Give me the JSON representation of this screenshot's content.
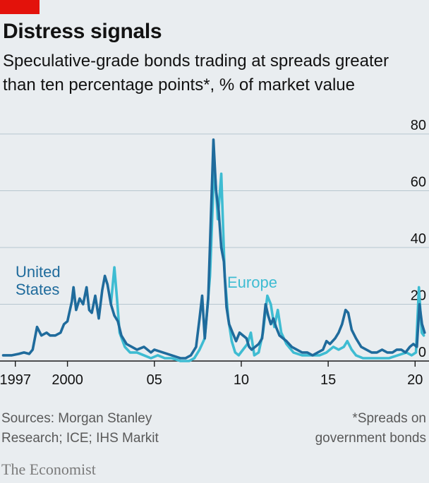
{
  "header": {
    "title": "Distress signals",
    "subtitle_line1": "Speculative-grade bonds trading at spreads greater",
    "subtitle_line2": "than ten percentage points*, % of market value"
  },
  "footer": {
    "sources_line1": "Sources: Morgan Stanley",
    "sources_line2": "Research; ICE; IHS Markit",
    "note_line1": "*Spreads on",
    "note_line2": "government bonds",
    "brand": "The Economist"
  },
  "colors": {
    "background": "#e9edf0",
    "accent_red": "#e3120b",
    "united_states": "#1f6b9c",
    "europe": "#3ebcd2",
    "grid": "#b7c6cf"
  },
  "chart_data": {
    "type": "line",
    "ylim": [
      0,
      80
    ],
    "xlim": [
      1996.2,
      2020.8
    ],
    "y_ticks": [
      0,
      20,
      40,
      60,
      80
    ],
    "y_tick_labels": [
      "0",
      "20",
      "40",
      "60",
      "80"
    ],
    "x_ticks": [
      1997,
      2000,
      2005,
      2010,
      2015,
      2020
    ],
    "x_tick_labels": [
      "1997",
      "2000",
      "05",
      "10",
      "15",
      "20"
    ],
    "grid": true,
    "series": [
      {
        "name": "United States",
        "label_line1": "United",
        "label_line2": "States",
        "color": "#1f6b9c",
        "points": [
          [
            1996.3,
            2
          ],
          [
            1996.8,
            2
          ],
          [
            1997.2,
            2.5
          ],
          [
            1997.5,
            3
          ],
          [
            1997.8,
            2.5
          ],
          [
            1998.0,
            4
          ],
          [
            1998.25,
            12
          ],
          [
            1998.5,
            9
          ],
          [
            1998.8,
            10
          ],
          [
            1999.0,
            9
          ],
          [
            1999.3,
            9
          ],
          [
            1999.6,
            10
          ],
          [
            1999.8,
            13
          ],
          [
            2000.0,
            14
          ],
          [
            2000.25,
            21
          ],
          [
            2000.35,
            26
          ],
          [
            2000.5,
            18
          ],
          [
            2000.7,
            22
          ],
          [
            2000.9,
            20
          ],
          [
            2001.1,
            26
          ],
          [
            2001.25,
            18
          ],
          [
            2001.4,
            17
          ],
          [
            2001.6,
            23
          ],
          [
            2001.8,
            15
          ],
          [
            2002.0,
            25
          ],
          [
            2002.15,
            30
          ],
          [
            2002.3,
            27
          ],
          [
            2002.5,
            20
          ],
          [
            2002.7,
            16
          ],
          [
            2002.9,
            14
          ],
          [
            2003.1,
            9
          ],
          [
            2003.4,
            6
          ],
          [
            2003.7,
            5
          ],
          [
            2004.0,
            4
          ],
          [
            2004.4,
            5
          ],
          [
            2004.8,
            3
          ],
          [
            2005.0,
            4
          ],
          [
            2005.5,
            3
          ],
          [
            2006.0,
            2
          ],
          [
            2006.5,
            1
          ],
          [
            2006.8,
            1
          ],
          [
            2007.1,
            2
          ],
          [
            2007.4,
            5
          ],
          [
            2007.6,
            15
          ],
          [
            2007.75,
            23
          ],
          [
            2007.9,
            8
          ],
          [
            2008.1,
            22
          ],
          [
            2008.25,
            50
          ],
          [
            2008.4,
            78
          ],
          [
            2008.55,
            60
          ],
          [
            2008.7,
            53
          ],
          [
            2008.85,
            40
          ],
          [
            2009.0,
            35
          ],
          [
            2009.15,
            19
          ],
          [
            2009.3,
            13
          ],
          [
            2009.5,
            10
          ],
          [
            2009.7,
            7
          ],
          [
            2009.9,
            10
          ],
          [
            2010.1,
            9
          ],
          [
            2010.3,
            8
          ],
          [
            2010.45,
            5
          ],
          [
            2010.6,
            4
          ],
          [
            2010.8,
            5
          ],
          [
            2011.0,
            6
          ],
          [
            2011.2,
            8
          ],
          [
            2011.4,
            20
          ],
          [
            2011.55,
            16
          ],
          [
            2011.7,
            13
          ],
          [
            2011.85,
            15
          ],
          [
            2012.0,
            12
          ],
          [
            2012.2,
            9
          ],
          [
            2012.4,
            8
          ],
          [
            2012.6,
            7
          ],
          [
            2012.9,
            5
          ],
          [
            2013.2,
            4
          ],
          [
            2013.5,
            3
          ],
          [
            2013.8,
            3
          ],
          [
            2014.1,
            2
          ],
          [
            2014.4,
            3
          ],
          [
            2014.7,
            4
          ],
          [
            2014.9,
            7
          ],
          [
            2015.1,
            6
          ],
          [
            2015.4,
            8
          ],
          [
            2015.6,
            10
          ],
          [
            2015.8,
            13
          ],
          [
            2016.0,
            18
          ],
          [
            2016.15,
            17
          ],
          [
            2016.35,
            11
          ],
          [
            2016.6,
            8
          ],
          [
            2016.9,
            5
          ],
          [
            2017.2,
            4
          ],
          [
            2017.5,
            3
          ],
          [
            2017.8,
            3
          ],
          [
            2018.1,
            4
          ],
          [
            2018.4,
            3
          ],
          [
            2018.7,
            3
          ],
          [
            2018.95,
            4
          ],
          [
            2019.2,
            4
          ],
          [
            2019.45,
            3
          ],
          [
            2019.7,
            5
          ],
          [
            2019.9,
            6
          ],
          [
            2020.1,
            5
          ],
          [
            2020.25,
            20
          ],
          [
            2020.4,
            13
          ],
          [
            2020.55,
            10
          ]
        ]
      },
      {
        "name": "Europe",
        "label_line1": "Europe",
        "color": "#3ebcd2",
        "points": [
          [
            2002.5,
            20
          ],
          [
            2002.7,
            33
          ],
          [
            2002.85,
            22
          ],
          [
            2003.0,
            10
          ],
          [
            2003.3,
            5
          ],
          [
            2003.6,
            3
          ],
          [
            2004.0,
            3
          ],
          [
            2004.4,
            2
          ],
          [
            2004.8,
            1
          ],
          [
            2005.2,
            2
          ],
          [
            2005.6,
            1
          ],
          [
            2006.0,
            1
          ],
          [
            2006.5,
            0
          ],
          [
            2007.0,
            0
          ],
          [
            2007.3,
            1
          ],
          [
            2007.6,
            4
          ],
          [
            2007.9,
            8
          ],
          [
            2008.2,
            30
          ],
          [
            2008.45,
            70
          ],
          [
            2008.65,
            50
          ],
          [
            2008.85,
            66
          ],
          [
            2009.05,
            30
          ],
          [
            2009.25,
            15
          ],
          [
            2009.45,
            7
          ],
          [
            2009.65,
            3
          ],
          [
            2009.85,
            2
          ],
          [
            2010.1,
            4
          ],
          [
            2010.35,
            6
          ],
          [
            2010.55,
            10
          ],
          [
            2010.75,
            2
          ],
          [
            2011.0,
            3
          ],
          [
            2011.25,
            10
          ],
          [
            2011.5,
            23
          ],
          [
            2011.7,
            20
          ],
          [
            2011.9,
            12
          ],
          [
            2012.1,
            18
          ],
          [
            2012.3,
            10
          ],
          [
            2012.6,
            6
          ],
          [
            2013.0,
            3
          ],
          [
            2013.5,
            2
          ],
          [
            2014.0,
            2
          ],
          [
            2014.5,
            2
          ],
          [
            2014.9,
            3
          ],
          [
            2015.3,
            5
          ],
          [
            2015.6,
            4
          ],
          [
            2015.9,
            5
          ],
          [
            2016.1,
            7
          ],
          [
            2016.35,
            4
          ],
          [
            2016.6,
            2
          ],
          [
            2017.0,
            1
          ],
          [
            2017.5,
            1
          ],
          [
            2018.0,
            1
          ],
          [
            2018.5,
            1
          ],
          [
            2019.0,
            2
          ],
          [
            2019.5,
            3
          ],
          [
            2019.8,
            2
          ],
          [
            2020.05,
            3
          ],
          [
            2020.22,
            26
          ],
          [
            2020.38,
            10
          ],
          [
            2020.5,
            9
          ]
        ]
      }
    ]
  }
}
